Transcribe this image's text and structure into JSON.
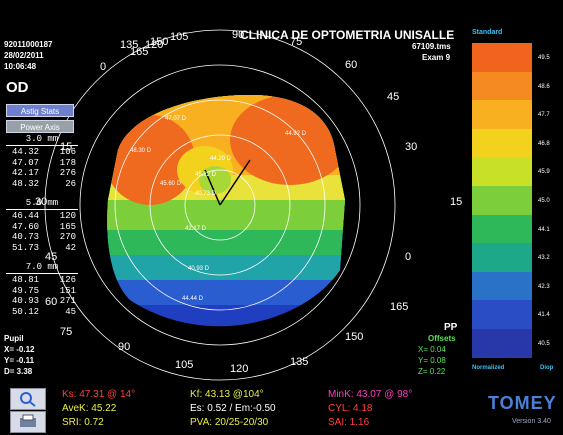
{
  "patient": {
    "id": "92011000187",
    "date": "28/02/2011",
    "time": "10:06:48",
    "eye": "OD"
  },
  "header": {
    "clinic": "CLINICA DE OPTOMETRIA UNISALLE",
    "file": "67109.tms",
    "exam": "Exam 9"
  },
  "buttons": {
    "astig": "Astig Stats",
    "power": "Power Axis"
  },
  "zones": [
    {
      "label": "3.0 mm",
      "rows": [
        [
          "44.32",
          "106"
        ],
        [
          "47.07",
          "178"
        ],
        [
          "42.17",
          "276"
        ],
        [
          "48.32",
          "26"
        ]
      ]
    },
    {
      "label": "5.0 mm",
      "rows": [
        [
          "46.44",
          "120"
        ],
        [
          "47.60",
          "165"
        ],
        [
          "40.73",
          "270"
        ],
        [
          "51.73",
          "42"
        ]
      ]
    },
    {
      "label": "7.0 mm",
      "rows": [
        [
          "48.81",
          "126"
        ],
        [
          "49.75",
          "151"
        ],
        [
          "40.93",
          "271"
        ],
        [
          "50.12",
          "45"
        ]
      ]
    }
  ],
  "pupil": {
    "label": "Pupil",
    "x": "X= -0.12",
    "y": "Y= -0.11",
    "d": "D= 3.38"
  },
  "pp": {
    "label": "PP",
    "offsets": "Offsets",
    "x": "X= 0.04",
    "y": "Y= 0.08",
    "z": "Z= 0.22"
  },
  "scale": {
    "title": "Standard",
    "values": [
      "49.5",
      "48.6",
      "47.7",
      "46.8",
      "45.9",
      "45.0",
      "44.1",
      "43.2",
      "42.3",
      "41.4",
      "40.5"
    ],
    "colors": [
      "#f0641e",
      "#f58a22",
      "#f8b020",
      "#f2d21c",
      "#c8e028",
      "#7ccf3a",
      "#2eb85a",
      "#1ea88a",
      "#2a72c8",
      "#2a4cc4",
      "#2838a8"
    ],
    "normalized": "Normalized",
    "diop": "Diop"
  },
  "ring_labels": [
    "105",
    "90",
    "75",
    "60",
    "45",
    "30",
    "15",
    "0",
    "165",
    "150",
    "135",
    "120",
    "105",
    "90",
    "75",
    "60",
    "45",
    "30",
    "15",
    "0",
    "165",
    "150",
    "135",
    "120"
  ],
  "overlay_values": [
    "40.73 D",
    "42.17 D",
    "40.93 D",
    "44.44 D",
    "45.22 D",
    "44.20 D",
    "47.07 D",
    "44.92 D",
    "48.30 D",
    "45.60 D"
  ],
  "bottom": {
    "ks": "Ks: 47.31 @ 14°",
    "avek": "AveK: 45.22",
    "sri": "SRI: 0.72",
    "kf": "Kf: 43.13 @104°",
    "es": "Es: 0.52 / Em:-0.50",
    "pva": "PVA: 20/25-20/30",
    "mink": "MinK: 43.07 @ 98°",
    "cyl": "CYL: 4.18",
    "sai": "SAI: 1.16",
    "brand": "TOMEY",
    "version": "Version 3.40"
  }
}
